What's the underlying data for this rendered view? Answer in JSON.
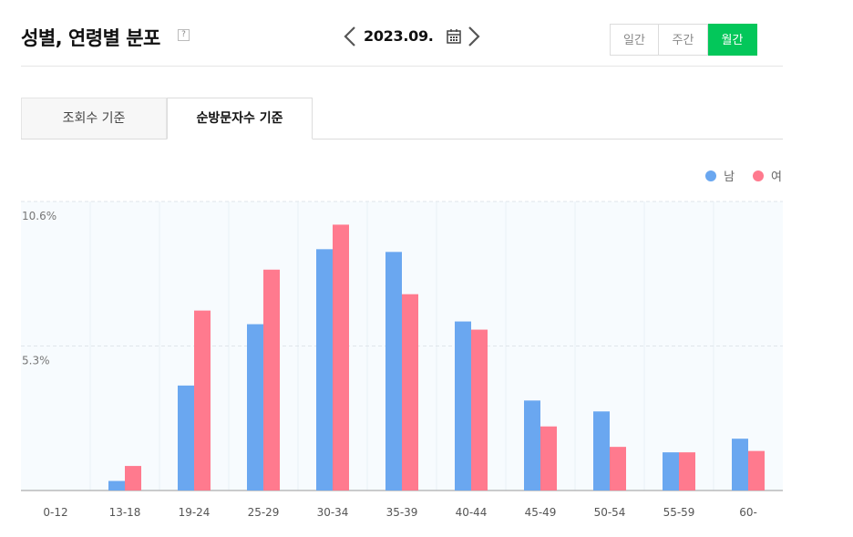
{
  "header": {
    "title": "성별, 연령별 분포",
    "help_label": "?",
    "date": "2023.09.",
    "period_options": [
      {
        "label": "일간",
        "active": false
      },
      {
        "label": "주간",
        "active": false
      },
      {
        "label": "월간",
        "active": true
      }
    ]
  },
  "tabs": [
    {
      "label": "조회수 기준",
      "active": false
    },
    {
      "label": "순방문자수 기준",
      "active": true
    }
  ],
  "colors": {
    "male": "#6aa7f0",
    "female": "#ff7a8e",
    "accent": "#03c75a"
  },
  "chart_data": {
    "type": "bar",
    "categories": [
      "0-12",
      "13-18",
      "19-24",
      "25-29",
      "30-34",
      "35-39",
      "40-44",
      "45-49",
      "50-54",
      "55-59",
      "60-"
    ],
    "series": [
      {
        "name": "남",
        "values": [
          0,
          0.35,
          3.85,
          6.1,
          8.85,
          8.75,
          6.2,
          3.3,
          2.9,
          1.4,
          1.9
        ]
      },
      {
        "name": "여",
        "values": [
          0,
          0.9,
          6.6,
          8.1,
          9.75,
          7.2,
          5.9,
          2.35,
          1.6,
          1.4,
          1.45
        ]
      }
    ],
    "y_ticks": [
      {
        "value": 5.3,
        "label": "5.3%"
      },
      {
        "value": 10.6,
        "label": "10.6%"
      }
    ],
    "ylim": [
      0,
      10.6
    ],
    "legend": "top-right",
    "grid": true
  }
}
